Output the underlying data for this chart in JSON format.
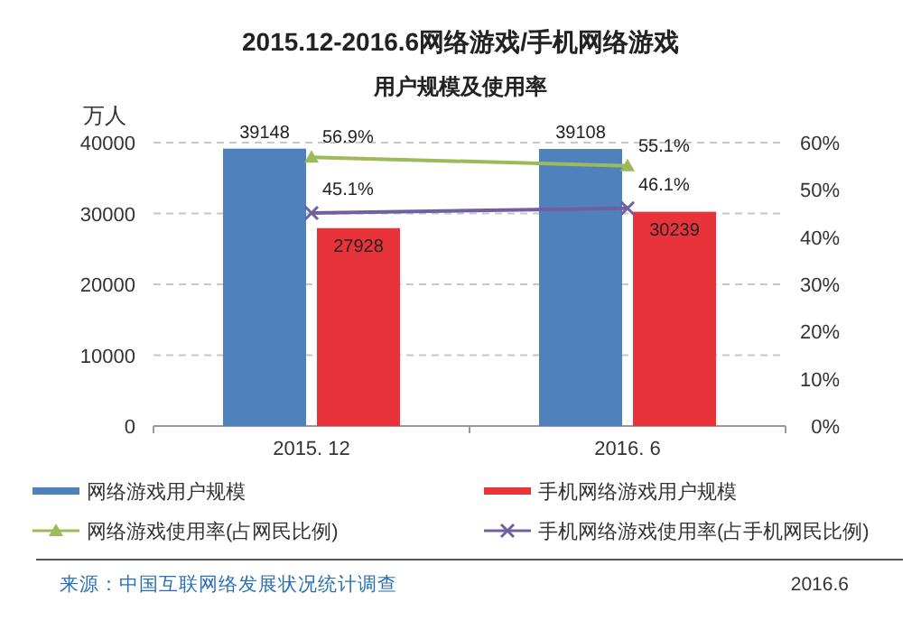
{
  "chart_data": {
    "type": "bar",
    "title": "2015.12-2016.6网络游戏/手机网络游戏",
    "subtitle": "用户规模及使用率",
    "ylabel": "万人",
    "categories": [
      "2015. 12",
      "2016. 6"
    ],
    "series": [
      {
        "name": "网络游戏用户规模",
        "color": "#4f81bd",
        "values": [
          39148,
          39108
        ],
        "value_labels": [
          "39148",
          "39108"
        ]
      },
      {
        "name": "手机网络游戏用户规模",
        "color": "#e8333a",
        "values": [
          27928,
          30239
        ],
        "value_labels": [
          "27928",
          "30239"
        ]
      },
      {
        "name": "网络游戏使用率(占网民比例)",
        "type": "line",
        "axis": "y2",
        "marker": "triangle",
        "color": "#9bbb59",
        "values": [
          56.9,
          55.1
        ],
        "value_labels": [
          "56.9%",
          "55.1%"
        ]
      },
      {
        "name": "手机网络游戏使用率(占手机网民比例)",
        "type": "line",
        "axis": "y2",
        "marker": "cross",
        "color": "#7060a0",
        "values": [
          45.1,
          46.1
        ],
        "value_labels": [
          "45.1%",
          "46.1%"
        ]
      }
    ],
    "ylim": [
      0,
      40000
    ],
    "yticks": [
      0,
      10000,
      20000,
      30000,
      40000
    ],
    "y2lim": [
      0,
      60
    ],
    "y2ticks": [
      {
        "value": 0,
        "label": "0%"
      },
      {
        "value": 10,
        "label": "10%"
      },
      {
        "value": 20,
        "label": "20%"
      },
      {
        "value": 30,
        "label": "30%"
      },
      {
        "value": 40,
        "label": "40%"
      },
      {
        "value": 50,
        "label": "50%"
      },
      {
        "value": 60,
        "label": "60%"
      }
    ],
    "grid": "y",
    "legend": "bottom",
    "annotations": [
      "来源：中国互联网络发展状况统计调查",
      "2016.6"
    ]
  }
}
